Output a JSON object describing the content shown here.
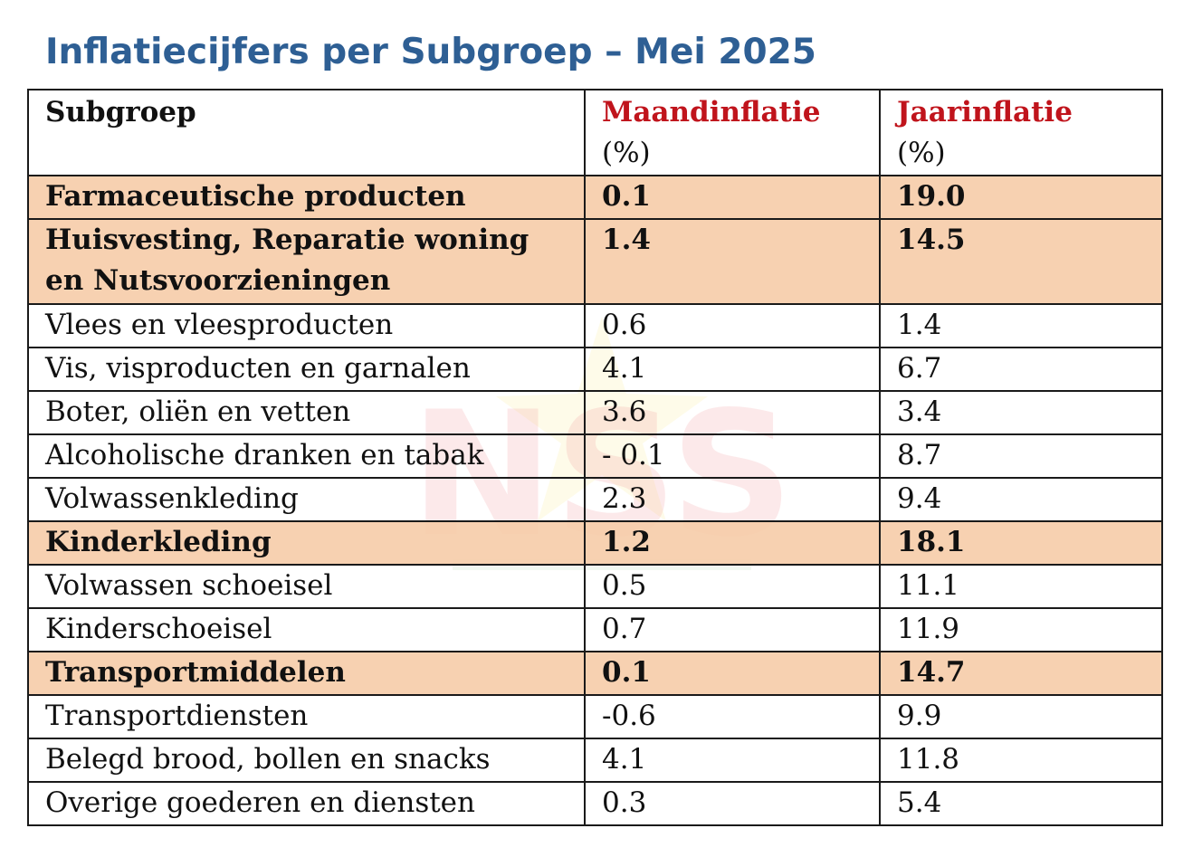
{
  "title": "Inflatiecijfers per Subgroep – Mei 2025",
  "watermark": {
    "text": "NSS",
    "colors": [
      "#e9393d",
      "#f7e36b",
      "#6cbb5a"
    ]
  },
  "table": {
    "headers": {
      "subgroep": "Subgroep",
      "maand": "Maandinflatie",
      "maand_unit": "(%)",
      "jaar": "Jaarinflatie",
      "jaar_unit": "(%)"
    },
    "rows": [
      {
        "name": "Farmaceutische producten",
        "maand": "0.1",
        "jaar": "19.0",
        "highlight": true
      },
      {
        "name": "Huisvesting, Reparatie woning en Nutsvoorzieningen",
        "maand": "1.4",
        "jaar": "14.5",
        "highlight": true
      },
      {
        "name": "Vlees en vleesproducten",
        "maand": "0.6",
        "jaar": "1.4",
        "highlight": false
      },
      {
        "name": "Vis, visproducten en garnalen",
        "maand": "4.1",
        "jaar": "6.7",
        "highlight": false
      },
      {
        "name": "Boter, oliën en vetten",
        "maand": "3.6",
        "jaar": "3.4",
        "highlight": false
      },
      {
        "name": "Alcoholische dranken en tabak",
        "maand": "- 0.1",
        "jaar": "8.7",
        "highlight": false
      },
      {
        "name": "Volwassenkleding",
        "maand": "2.3",
        "jaar": "9.4",
        "highlight": false
      },
      {
        "name": "Kinderkleding",
        "maand": "1.2",
        "jaar": "18.1",
        "highlight": true
      },
      {
        "name": "Volwassen schoeisel",
        "maand": "0.5",
        "jaar": "11.1",
        "highlight": false
      },
      {
        "name": "Kinderschoeisel",
        "maand": "0.7",
        "jaar": "11.9",
        "highlight": false
      },
      {
        "name": "Transportmiddelen",
        "maand": "0.1",
        "jaar": "14.7",
        "highlight": true
      },
      {
        "name": "Transportdiensten",
        "maand": "-0.6",
        "jaar": "9.9",
        "highlight": false
      },
      {
        "name": "Belegd brood, bollen en snacks",
        "maand": "4.1",
        "jaar": "11.8",
        "highlight": false
      },
      {
        "name": "Overige goederen en diensten",
        "maand": "0.3",
        "jaar": "5.4",
        "highlight": false
      }
    ]
  }
}
